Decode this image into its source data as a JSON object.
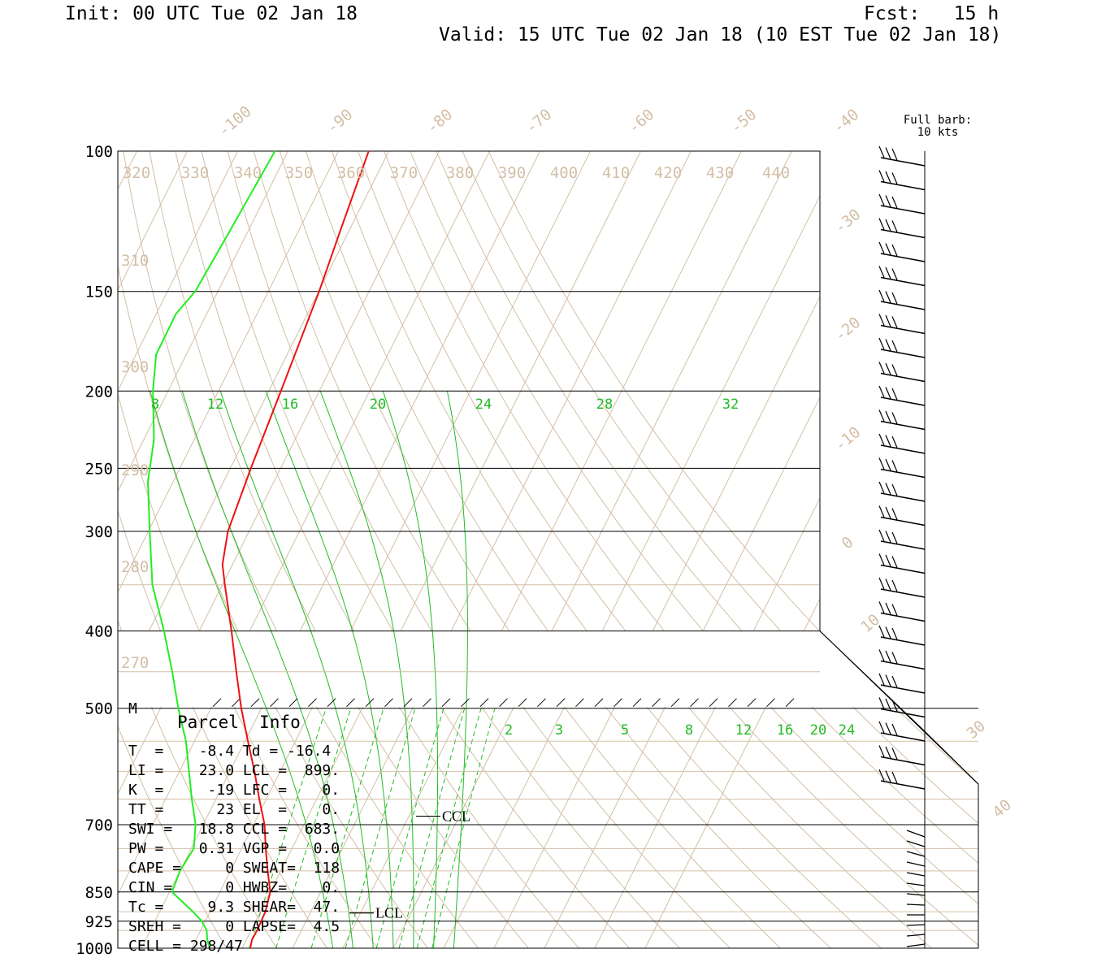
{
  "header": {
    "init": "Init: 00 UTC Tue 02 Jan 18",
    "fcst": "Fcst:   15 h",
    "valid": "Valid: 15 UTC Tue 02 Jan 18 (10 EST Tue 02 Jan 18)"
  },
  "barb_legend": {
    "line1": "Full barb:",
    "line2": "10 kts"
  },
  "pressure_labels": [
    "100",
    "150",
    "200",
    "250",
    "300",
    "400",
    "500",
    "700",
    "850",
    "925",
    "1000"
  ],
  "isotherm_labels": [
    "-100",
    "-90",
    "-80",
    "-70",
    "-60",
    "-50",
    "-40",
    "-30",
    "-20",
    "-10",
    "0",
    "10",
    "30",
    "40"
  ],
  "theta_top": [
    "320",
    "330",
    "340",
    "350",
    "360",
    "370",
    "380",
    "390",
    "400",
    "410",
    "420",
    "430",
    "440"
  ],
  "theta_left": [
    "310",
    "300",
    "290",
    "280",
    "270"
  ],
  "mixing_upper": [
    "8",
    "12",
    "16",
    "20",
    "24",
    "28",
    "32"
  ],
  "mixing_lower": [
    "2",
    "3",
    "5",
    "8",
    "12",
    "16",
    "20",
    "24"
  ],
  "m_marker": "M",
  "parcel_info": {
    "title": "Parcel  Info",
    "rows": [
      "T  =    -8.4 Td = -16.4",
      "LI =    23.0 LCL =  899.",
      "K  =     -19 LFC =    0.",
      "TT =      23 EL  =    0.",
      "SWI =   18.8 CCL =  683.",
      "PW =    0.31 VGP =   0.0",
      "CAPE =     0 SWEAT=  118",
      "CIN =      0 HWBZ=    0.",
      "Tc =     9.3 SHEAR=  47.",
      "SREH =     0 LAPSE=  4.5",
      "CELL = 298/47"
    ]
  },
  "level_markers": {
    "ccl": "CCL",
    "lcl": "LCL"
  },
  "colors": {
    "temperature": "#ee1111",
    "dewpoint": "#22ee22",
    "background_lines": "#d3bfa6",
    "mixing_ratio": "#22bb22"
  },
  "chart_data": {
    "type": "line",
    "title": "",
    "xlabel": "",
    "ylabel": "",
    "y_axis": "pressure (hPa), log scale",
    "ylim": [
      1000,
      100
    ],
    "series": [
      {
        "name": "",
        "pressure": [
          1000,
          975,
          950,
          925,
          900,
          850,
          800,
          750,
          700,
          650,
          600,
          550,
          500,
          450,
          400,
          350,
          330,
          300,
          250,
          200,
          150,
          125,
          100
        ],
        "values": [
          -8.4,
          -8.9,
          -8.8,
          -8.9,
          -9.0,
          -10.0,
          -12.6,
          -15.2,
          -17.8,
          -21.4,
          -25.1,
          -29.4,
          -34.0,
          -38.6,
          -43.6,
          -49.5,
          -52.0,
          -54.2,
          -55.9,
          -57.6,
          -59.9,
          -61.8,
          -64.0
        ]
      },
      {
        "name": "",
        "pressure": [
          1000,
          975,
          950,
          925,
          900,
          850,
          800,
          750,
          700,
          650,
          600,
          550,
          500,
          450,
          400,
          350,
          300,
          260,
          230,
          200,
          180,
          160,
          150,
          125,
          100
        ],
        "values": [
          -16.4,
          -17.8,
          -18.8,
          -20.7,
          -23.4,
          -29.5,
          -30.0,
          -29.5,
          -31.5,
          -34.8,
          -38.1,
          -41.7,
          -46.5,
          -51.3,
          -57.0,
          -63.9,
          -69.7,
          -75.0,
          -78.0,
          -83.0,
          -86.0,
          -86.1,
          -84.5,
          -83.6,
          -82.6
        ]
      }
    ]
  }
}
